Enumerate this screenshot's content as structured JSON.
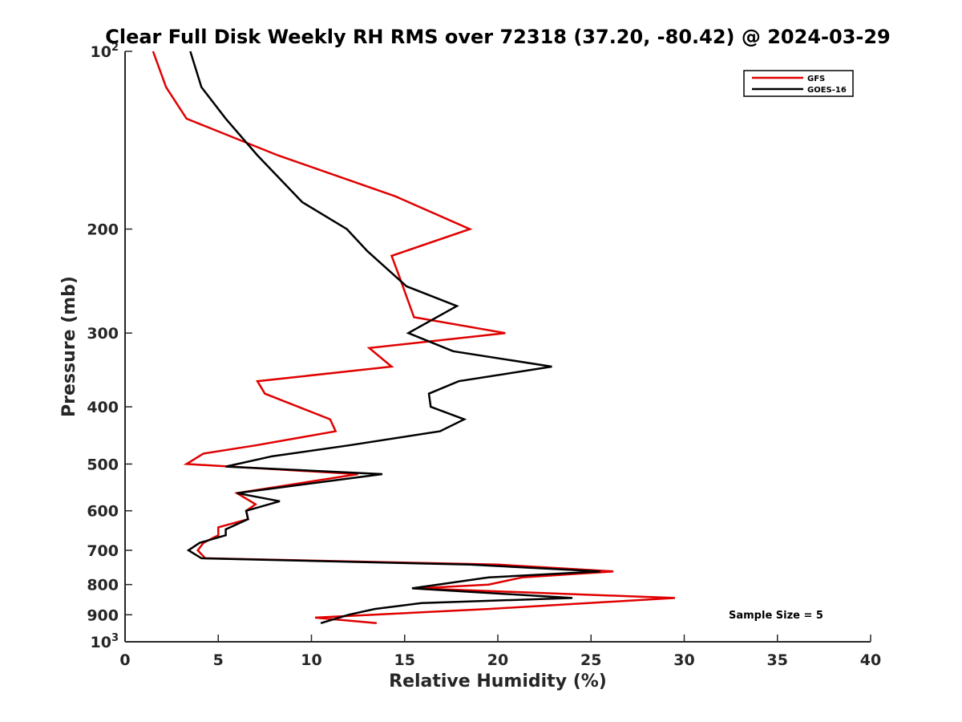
{
  "chart_data": {
    "type": "line",
    "title": "Clear Full Disk Weekly RH RMS over 72318 (37.20, -80.42) @ 2024-03-29",
    "xlabel": "Relative Humidity (%)",
    "ylabel": "Pressure (mb)",
    "xlim": [
      0,
      40
    ],
    "ylim": [
      100,
      1000
    ],
    "y_scale": "log",
    "y_reversed": true,
    "x_ticks": [
      0,
      5,
      10,
      15,
      20,
      25,
      30,
      35,
      40
    ],
    "y_ticks": [
      {
        "value": 100,
        "base": "10",
        "exp": "2"
      },
      {
        "value": 200,
        "label": "200"
      },
      {
        "value": 300,
        "label": "300"
      },
      {
        "value": 400,
        "label": "400"
      },
      {
        "value": 500,
        "label": "500"
      },
      {
        "value": 600,
        "label": "600"
      },
      {
        "value": 700,
        "label": "700"
      },
      {
        "value": 800,
        "label": "800"
      },
      {
        "value": 900,
        "label": "900"
      },
      {
        "value": 1000,
        "base": "10",
        "exp": "3"
      }
    ],
    "grid": false,
    "legend_position": "top-right",
    "series": [
      {
        "name": "GFS",
        "color": "#e00000",
        "points": [
          {
            "x": 1.5,
            "p": 100
          },
          {
            "x": 2.2,
            "p": 115
          },
          {
            "x": 3.3,
            "p": 130
          },
          {
            "x": 8.2,
            "p": 150
          },
          {
            "x": 14.5,
            "p": 176
          },
          {
            "x": 18.5,
            "p": 200
          },
          {
            "x": 14.3,
            "p": 222
          },
          {
            "x": 14.7,
            "p": 240
          },
          {
            "x": 15.5,
            "p": 282
          },
          {
            "x": 20.4,
            "p": 300
          },
          {
            "x": 13.1,
            "p": 318
          },
          {
            "x": 14.3,
            "p": 342
          },
          {
            "x": 7.1,
            "p": 362
          },
          {
            "x": 7.5,
            "p": 380
          },
          {
            "x": 11.0,
            "p": 420
          },
          {
            "x": 11.3,
            "p": 440
          },
          {
            "x": 7.0,
            "p": 465
          },
          {
            "x": 4.2,
            "p": 480
          },
          {
            "x": 3.3,
            "p": 500
          },
          {
            "x": 12.5,
            "p": 520
          },
          {
            "x": 6.0,
            "p": 560
          },
          {
            "x": 7.0,
            "p": 585
          },
          {
            "x": 6.5,
            "p": 600
          },
          {
            "x": 6.6,
            "p": 620
          },
          {
            "x": 5.0,
            "p": 640
          },
          {
            "x": 5.0,
            "p": 660
          },
          {
            "x": 4.2,
            "p": 680
          },
          {
            "x": 3.9,
            "p": 700
          },
          {
            "x": 4.3,
            "p": 722
          },
          {
            "x": 20.0,
            "p": 740
          },
          {
            "x": 26.2,
            "p": 760
          },
          {
            "x": 21.3,
            "p": 778
          },
          {
            "x": 19.5,
            "p": 800
          },
          {
            "x": 15.7,
            "p": 812
          },
          {
            "x": 29.5,
            "p": 843
          },
          {
            "x": 19.5,
            "p": 880
          },
          {
            "x": 10.2,
            "p": 910
          },
          {
            "x": 13.5,
            "p": 930
          }
        ]
      },
      {
        "name": "GOES-16",
        "color": "#000000",
        "points": [
          {
            "x": 3.5,
            "p": 100
          },
          {
            "x": 4.1,
            "p": 115
          },
          {
            "x": 5.4,
            "p": 130
          },
          {
            "x": 7.1,
            "p": 150
          },
          {
            "x": 9.5,
            "p": 180
          },
          {
            "x": 11.9,
            "p": 200
          },
          {
            "x": 13.0,
            "p": 218
          },
          {
            "x": 15.1,
            "p": 250
          },
          {
            "x": 17.8,
            "p": 270
          },
          {
            "x": 15.2,
            "p": 300
          },
          {
            "x": 17.6,
            "p": 322
          },
          {
            "x": 22.9,
            "p": 342
          },
          {
            "x": 17.9,
            "p": 362
          },
          {
            "x": 16.3,
            "p": 380
          },
          {
            "x": 16.4,
            "p": 400
          },
          {
            "x": 18.2,
            "p": 420
          },
          {
            "x": 16.9,
            "p": 440
          },
          {
            "x": 12.0,
            "p": 465
          },
          {
            "x": 7.9,
            "p": 485
          },
          {
            "x": 5.4,
            "p": 505
          },
          {
            "x": 13.8,
            "p": 520
          },
          {
            "x": 6.0,
            "p": 560
          },
          {
            "x": 8.3,
            "p": 578
          },
          {
            "x": 6.5,
            "p": 600
          },
          {
            "x": 6.6,
            "p": 620
          },
          {
            "x": 5.4,
            "p": 645
          },
          {
            "x": 5.4,
            "p": 660
          },
          {
            "x": 4.0,
            "p": 680
          },
          {
            "x": 3.4,
            "p": 700
          },
          {
            "x": 4.1,
            "p": 722
          },
          {
            "x": 18.5,
            "p": 740
          },
          {
            "x": 25.5,
            "p": 760
          },
          {
            "x": 19.5,
            "p": 778
          },
          {
            "x": 15.4,
            "p": 812
          },
          {
            "x": 24.0,
            "p": 843
          },
          {
            "x": 15.9,
            "p": 860
          },
          {
            "x": 13.4,
            "p": 880
          },
          {
            "x": 12.0,
            "p": 900
          },
          {
            "x": 10.5,
            "p": 930
          }
        ]
      }
    ],
    "annotations": [
      {
        "text": "Sample Size = 5"
      }
    ]
  }
}
